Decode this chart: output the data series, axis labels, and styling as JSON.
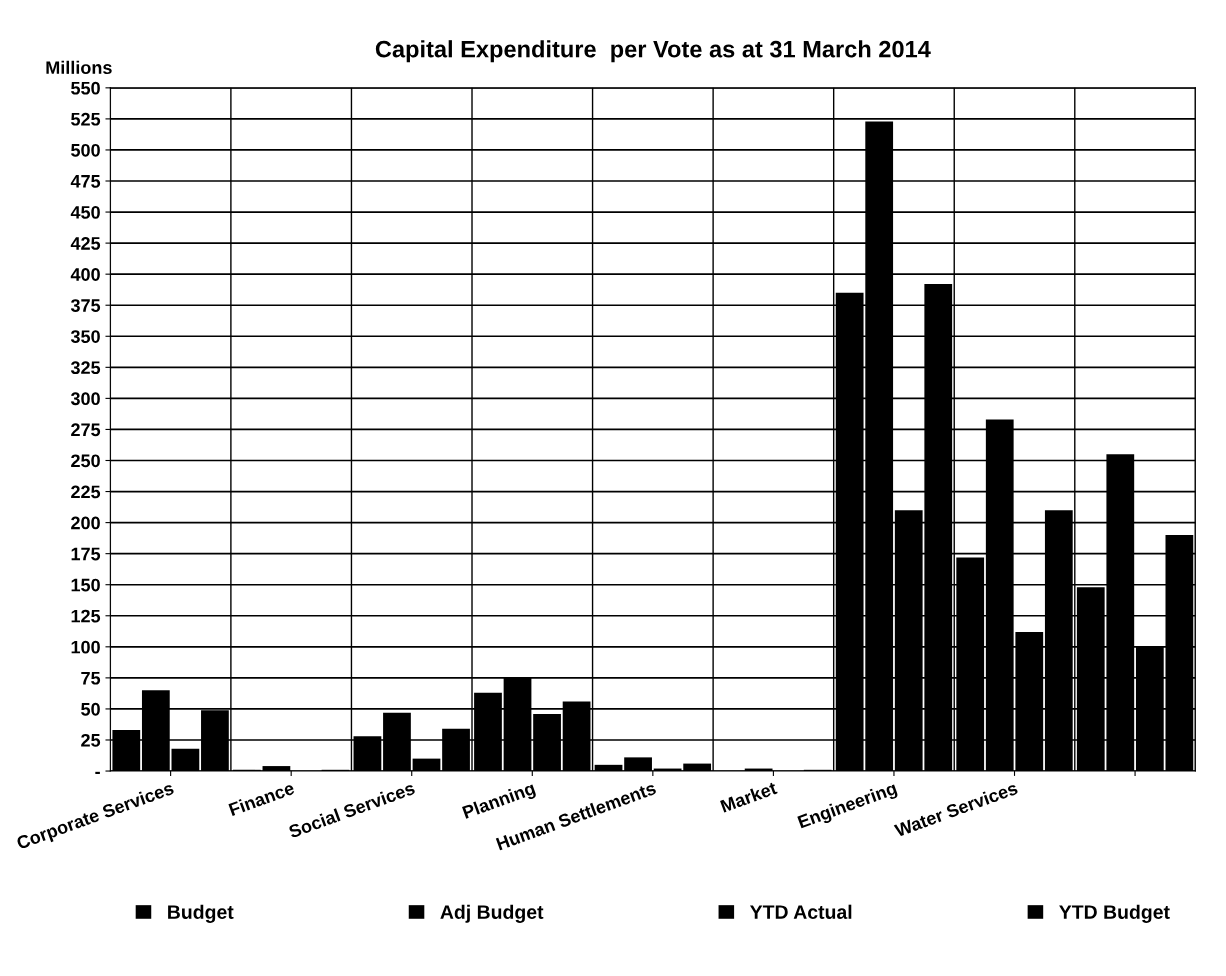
{
  "chart_data": {
    "type": "bar",
    "title": "Capital Expenditure  per Vote as at 31 March 2014",
    "ylabel": "Millions",
    "categories": [
      "Corporate Services",
      "Finance",
      "Social Services",
      "Planning",
      "Human Settlements",
      "Market",
      "Engineering",
      "Water Services",
      null
    ],
    "series": [
      {
        "name": "Budget",
        "color": "#000000",
        "values": [
          33,
          1,
          28,
          63,
          5,
          0,
          385,
          172,
          148
        ]
      },
      {
        "name": "Adj Budget",
        "color": "#000000",
        "values": [
          65,
          4,
          47,
          75,
          11,
          2,
          523,
          283,
          255
        ]
      },
      {
        "name": "YTD Actual",
        "color": "#000000",
        "values": [
          18,
          0,
          10,
          46,
          2,
          0,
          210,
          112,
          100
        ]
      },
      {
        "name": "YTD Budget",
        "color": "#000000",
        "values": [
          49,
          1,
          34,
          56,
          6,
          1,
          392,
          210,
          190
        ]
      }
    ],
    "ylim": [
      0,
      550
    ],
    "yticks": [
      {
        "value": 0,
        "label": "-"
      },
      25,
      50,
      75,
      100,
      125,
      150,
      175,
      200,
      225,
      250,
      275,
      300,
      325,
      350,
      375,
      400,
      425,
      450,
      475,
      500,
      525,
      550
    ],
    "grid": "y",
    "legend": "bottom"
  }
}
